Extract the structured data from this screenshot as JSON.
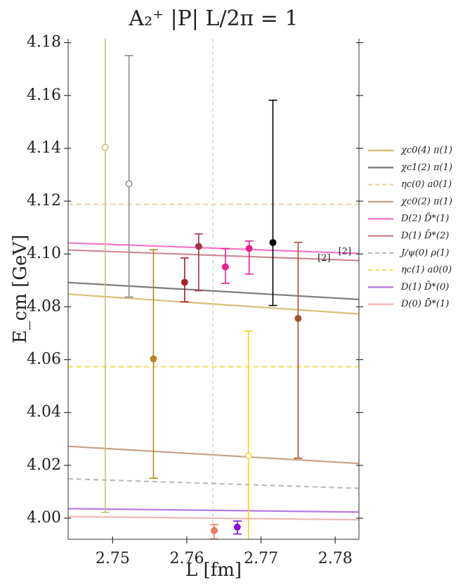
{
  "chart_data": {
    "type": "scatter",
    "title": "A₂⁺ |P| L/2π = 1",
    "xlabel": "L [fm]",
    "ylabel": "E_cm [GeV]",
    "xlim": [
      2.744,
      2.7832
    ],
    "ylim": [
      3.992,
      4.1815
    ],
    "x_ticks": [
      {
        "value": 2.75,
        "label": "2.75"
      },
      {
        "value": 2.76,
        "label": "2.76"
      },
      {
        "value": 2.77,
        "label": "2.77"
      },
      {
        "value": 2.78,
        "label": "2.78"
      }
    ],
    "y_ticks": [
      {
        "value": 4.0,
        "label": "4.00"
      },
      {
        "value": 4.02,
        "label": "4.02"
      },
      {
        "value": 4.04,
        "label": "4.04"
      },
      {
        "value": 4.06,
        "label": "4.06"
      },
      {
        "value": 4.08,
        "label": "4.08"
      },
      {
        "value": 4.1,
        "label": "4.10"
      },
      {
        "value": 4.12,
        "label": "4.12"
      },
      {
        "value": 4.14,
        "label": "4.14"
      },
      {
        "value": 4.16,
        "label": "4.16"
      },
      {
        "value": 4.18,
        "label": "4.18"
      }
    ],
    "grid": false,
    "legend_position": "right",
    "reference_vline": {
      "x": 2.7635,
      "color": "#cfcfcf"
    },
    "curves": [
      {
        "name": "χc0(4) π(1)",
        "color": "#d8bf7c",
        "dashed": false,
        "y_start": 4.0848,
        "y_end": 4.0773
      },
      {
        "name": "χc1(2) π(1)",
        "color": "#7d7d7d",
        "dashed": false,
        "y_start": 4.0892,
        "y_end": 4.0828
      },
      {
        "name": "ηc(0) a0(1)",
        "color": "#e8d9a6",
        "dashed": true,
        "y_start": 4.1188,
        "y_end": 4.1188
      },
      {
        "name": "χc0(2) π(1)",
        "color": "#c6a28c",
        "dashed": false,
        "y_start": 4.0272,
        "y_end": 4.0207
      },
      {
        "name": "D(2) D̄*(1)",
        "color": "#f27ac6",
        "dashed": false,
        "y_start": 4.1042,
        "y_end": 4.1002
      },
      {
        "name": "D(1) D̄*(2)",
        "color": "#cc8a94",
        "dashed": false,
        "y_start": 4.1015,
        "y_end": 4.0975
      },
      {
        "name": "J/ψ(0) ρ(1)",
        "color": "#bdbdbd",
        "dashed": true,
        "y_start": 4.0149,
        "y_end": 4.0113
      },
      {
        "name": "ηc(1) a0(0)",
        "color": "#f3e46a",
        "dashed": true,
        "y_start": 4.0573,
        "y_end": 4.0573
      },
      {
        "name": "D(1) D̄*(0)",
        "color": "#b57ce0",
        "dashed": false,
        "y_start": 4.0036,
        "y_end": 4.0023
      },
      {
        "name": "D(0) D̄*(1)",
        "color": "#f0b8b4",
        "dashed": false,
        "y_start": 4.0006,
        "y_end": 3.9994
      }
    ],
    "duplicate_labels": [
      {
        "text": "[2]",
        "color": "#f27ac6",
        "x": 2.7813,
        "y": 4.1008
      },
      {
        "text": "[2]",
        "color": "#cc8a94",
        "x": 2.7785,
        "y": 4.0983
      }
    ],
    "points": [
      {
        "x": 2.749,
        "y": 4.1403,
        "err_low": 4.0022,
        "err_high": 4.1815,
        "color": "#cdbd77",
        "hollow": true
      },
      {
        "x": 2.7522,
        "y": 4.1266,
        "err_low": 4.0837,
        "err_high": 4.1751,
        "color": "#8c8c8c",
        "hollow": true
      },
      {
        "x": 2.7555,
        "y": 4.0603,
        "err_low": 4.0151,
        "err_high": 4.1016,
        "color": "#b8861b",
        "hollow": false
      },
      {
        "x": 2.7597,
        "y": 4.0893,
        "err_low": 4.0819,
        "err_high": 4.0985,
        "color": "#a51f2d",
        "hollow": false
      },
      {
        "x": 2.7616,
        "y": 4.1029,
        "err_low": 4.0861,
        "err_high": 4.1076,
        "color": "#a83245",
        "hollow": false
      },
      {
        "x": 2.7637,
        "y": 3.9953,
        "err_low": 3.9921,
        "err_high": 3.9976,
        "color": "#ee7766",
        "hollow": false
      },
      {
        "x": 2.7652,
        "y": 4.0951,
        "err_low": 4.0889,
        "err_high": 4.102,
        "color": "#ee1d8c",
        "hollow": false
      },
      {
        "x": 2.7668,
        "y": 3.9966,
        "err_low": 3.994,
        "err_high": 3.9989,
        "color": "#8a10d6",
        "hollow": false
      },
      {
        "x": 2.7684,
        "y": 4.1021,
        "err_low": 4.0924,
        "err_high": 4.1049,
        "color": "#ee1d8c",
        "hollow": false
      },
      {
        "x": 2.7683,
        "y": 4.0236,
        "err_low": 3.992,
        "err_high": 4.0708,
        "color": "#f3d21a",
        "hollow": true
      },
      {
        "x": 2.7716,
        "y": 4.1043,
        "err_low": 4.0805,
        "err_high": 4.1582,
        "color": "#000000",
        "hollow": false
      },
      {
        "x": 2.775,
        "y": 4.0756,
        "err_low": 4.0227,
        "err_high": 4.1044,
        "color": "#a0522d",
        "hollow": false
      }
    ]
  }
}
